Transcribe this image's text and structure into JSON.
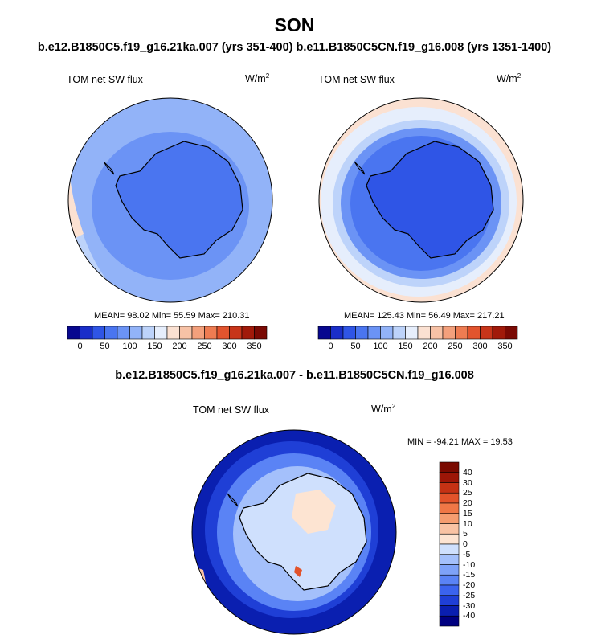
{
  "title": "SON",
  "subtitle": "b.e12.B1850C5.f19_g16.21ka.007 (yrs 351-400) b.e11.B1850C5CN.f19_g16.008 (yrs 1351-1400)",
  "diff_title": "b.e12.B1850C5.f19_g16.21ka.007 - b.e11.B1850C5CN.f19_g16.008",
  "colors": {
    "abs_scale": [
      "#08088f",
      "#1a2ec9",
      "#2f55e6",
      "#4a75f0",
      "#6b93f5",
      "#92b3f8",
      "#bdd3fa",
      "#e6eefc",
      "#fbe1d2",
      "#f7c2a6",
      "#f3a07c",
      "#ee7c52",
      "#e2542e",
      "#c8351a",
      "#a11a0a",
      "#7a0a04"
    ],
    "diff_scale": [
      "#000080",
      "#0a1fb0",
      "#1f3fd6",
      "#3b63ee",
      "#5a83f5",
      "#7ea2f8",
      "#a4c0fb",
      "#cfe0fd",
      "#fde4d2",
      "#f9c3a4",
      "#f59d70",
      "#ef7746",
      "#e2532a",
      "#c53214",
      "#9c1607",
      "#7a0a00"
    ]
  },
  "panels": [
    {
      "label": "TOM net SW flux",
      "units": "W/m",
      "units_sup": "2",
      "stats": "MEAN=  98.02  Min=  55.59  Max= 210.31"
    },
    {
      "label": "TOM net SW flux",
      "units": "W/m",
      "units_sup": "2",
      "stats": "MEAN= 125.43  Min=  56.49  Max= 217.21"
    }
  ],
  "abs_colorbar_ticks": [
    "0",
    "50",
    "100",
    "150",
    "200",
    "250",
    "300",
    "350"
  ],
  "diff_panel": {
    "label": "TOM net SW flux",
    "units": "W/m",
    "units_sup": "2",
    "stats": "MIN = -94.21 MAX =  19.53"
  },
  "diff_colorbar_ticks": [
    "40",
    "30",
    "25",
    "20",
    "15",
    "10",
    "5",
    "0",
    "-5",
    "-10",
    "-15",
    "-20",
    "-25",
    "-30",
    "-40"
  ],
  "chart_data": [
    {
      "type": "heatmap",
      "projection": "south-polar-stereographic",
      "title": "TOM net SW flux",
      "units": "W/m2",
      "case": "b.e12.B1850C5.f19_g16.21ka.007 (yrs 351-400)",
      "season": "SON",
      "mean": 98.02,
      "min": 55.59,
      "max": 210.31,
      "contour_levels": [
        0,
        25,
        50,
        75,
        100,
        125,
        150,
        175,
        200,
        225,
        250,
        275,
        300,
        325,
        350
      ]
    },
    {
      "type": "heatmap",
      "projection": "south-polar-stereographic",
      "title": "TOM net SW flux",
      "units": "W/m2",
      "case": "b.e11.B1850C5CN.f19_g16.008 (yrs 1351-1400)",
      "season": "SON",
      "mean": 125.43,
      "min": 56.49,
      "max": 217.21,
      "contour_levels": [
        0,
        25,
        50,
        75,
        100,
        125,
        150,
        175,
        200,
        225,
        250,
        275,
        300,
        325,
        350
      ]
    },
    {
      "type": "heatmap",
      "projection": "south-polar-stereographic",
      "title": "TOM net SW flux",
      "units": "W/m2",
      "case": "b.e12.B1850C5.f19_g16.21ka.007 - b.e11.B1850C5CN.f19_g16.008",
      "min": -94.21,
      "max": 19.53,
      "contour_levels": [
        -40,
        -30,
        -25,
        -20,
        -15,
        -10,
        -5,
        0,
        5,
        10,
        15,
        20,
        25,
        30,
        40
      ]
    }
  ]
}
